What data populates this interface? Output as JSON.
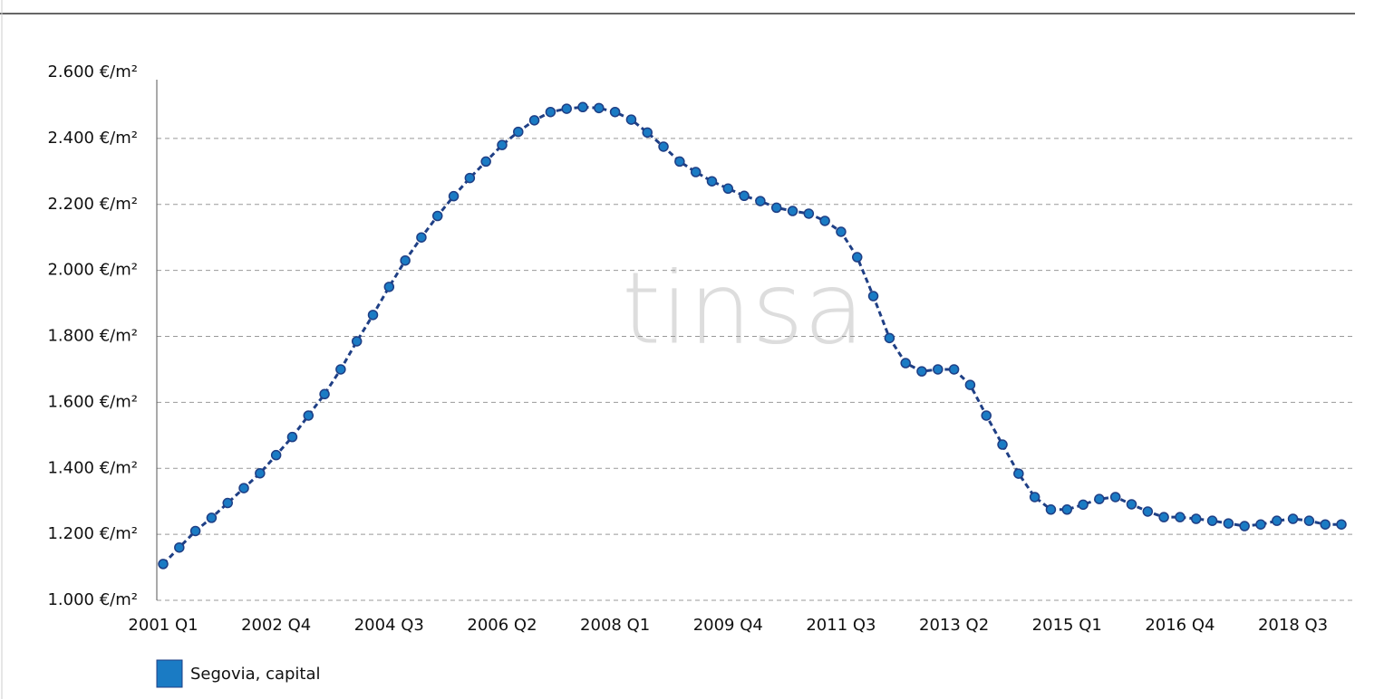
{
  "chart_data": {
    "type": "line",
    "annotation": "tinsa",
    "categories": [
      "2001 Q1",
      null,
      null,
      null,
      null,
      null,
      null,
      "2002 Q4",
      null,
      null,
      null,
      null,
      null,
      null,
      "2004 Q3",
      null,
      null,
      null,
      null,
      null,
      null,
      "2006 Q2",
      null,
      null,
      null,
      null,
      null,
      null,
      "2008 Q1",
      null,
      null,
      null,
      null,
      null,
      null,
      "2009 Q4",
      null,
      null,
      null,
      null,
      null,
      null,
      "2011 Q3",
      null,
      null,
      null,
      null,
      null,
      null,
      "2013 Q2",
      null,
      null,
      null,
      null,
      null,
      null,
      "2015 Q1",
      null,
      null,
      null,
      null,
      null,
      null,
      "2016 Q4",
      null,
      null,
      null,
      null,
      null,
      null,
      "2018 Q3",
      null,
      null,
      null
    ],
    "series": [
      {
        "name": "Segovia, capital",
        "color": "#1a7bc4",
        "line_color": "#1f3f85",
        "values": [
          1110,
          1160,
          1210,
          1250,
          1295,
          1340,
          1385,
          1440,
          1495,
          1560,
          1625,
          1700,
          1785,
          1865,
          1950,
          2030,
          2100,
          2165,
          2225,
          2280,
          2330,
          2380,
          2420,
          2455,
          2480,
          2490,
          2495,
          2492,
          2480,
          2457,
          2418,
          2375,
          2330,
          2298,
          2270,
          2248,
          2226,
          2210,
          2190,
          2180,
          2172,
          2150,
          2117,
          2040,
          1922,
          1795,
          1719,
          1694,
          1700,
          1700,
          1653,
          1560,
          1472,
          1384,
          1313,
          1275,
          1275,
          1290,
          1307,
          1313,
          1291,
          1269,
          1252,
          1252,
          1247,
          1241,
          1233,
          1225,
          1230,
          1241,
          1247,
          1241,
          1230,
          1230
        ]
      }
    ],
    "ylim": [
      1000,
      2600
    ],
    "yticks": [
      {
        "value": 1000,
        "label": "1.000 €/m²"
      },
      {
        "value": 1200,
        "label": "1.200 €/m²"
      },
      {
        "value": 1400,
        "label": "1.400 €/m²"
      },
      {
        "value": 1600,
        "label": "1.600 €/m²"
      },
      {
        "value": 1800,
        "label": "1.800 €/m²"
      },
      {
        "value": 2000,
        "label": "2.000 €/m²"
      },
      {
        "value": 2200,
        "label": "2.200 €/m²"
      },
      {
        "value": 2400,
        "label": "2.400 €/m²"
      },
      {
        "value": 2600,
        "label": "2.600 €/m²"
      }
    ],
    "grid": true
  }
}
